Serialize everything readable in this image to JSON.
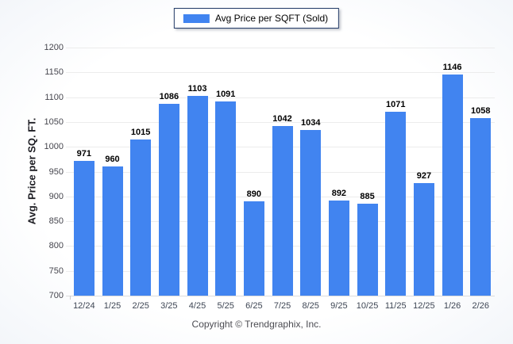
{
  "legend": {
    "label": "Avg Price per SQFT (Sold)",
    "swatch_color": "#4184f0",
    "border_color": "#223a66"
  },
  "chart_data": {
    "type": "bar",
    "categories": [
      "12/24",
      "1/25",
      "2/25",
      "3/25",
      "4/25",
      "5/25",
      "6/25",
      "7/25",
      "8/25",
      "9/25",
      "10/25",
      "11/25",
      "12/25",
      "1/26",
      "2/26"
    ],
    "values": [
      971,
      960,
      1015,
      1086,
      1103,
      1091,
      890,
      1042,
      1034,
      892,
      885,
      1071,
      927,
      1146,
      1058
    ],
    "title": "",
    "xlabel": "",
    "ylabel": "Avg. Price per SQ. FT.",
    "ylim": [
      700,
      1200
    ],
    "ytick_step": 50,
    "yticks": [
      700,
      750,
      800,
      850,
      900,
      950,
      1000,
      1050,
      1100,
      1150,
      1200
    ],
    "bar_color": "#4184f0",
    "grid": "horizontal",
    "gridline_color": "#ececec",
    "legend_position": "top-center",
    "value_labels": true
  },
  "footer": {
    "copyright": "Copyright © Trendgraphix, Inc."
  }
}
